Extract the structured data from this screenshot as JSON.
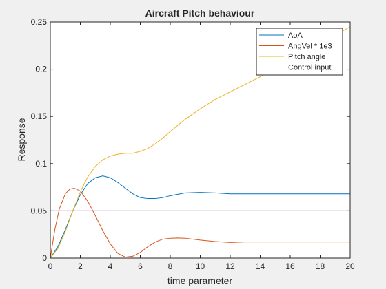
{
  "chart_data": {
    "type": "line",
    "title": "Aircraft Pitch behaviour",
    "xlabel": "time parameter",
    "ylabel": "Response",
    "xlim": [
      0,
      20
    ],
    "ylim": [
      0,
      0.25
    ],
    "xticks": [
      0,
      2,
      4,
      6,
      8,
      10,
      12,
      14,
      16,
      18,
      20
    ],
    "yticks": [
      0,
      0.05,
      0.1,
      0.15,
      0.2,
      0.25
    ],
    "xtick_labels": [
      "0",
      "2",
      "4",
      "6",
      "8",
      "10",
      "12",
      "14",
      "16",
      "18",
      "20"
    ],
    "ytick_labels": [
      "0",
      "0.05",
      "0.1",
      "0.15",
      "0.2",
      "0.25"
    ],
    "grid": false,
    "legend_position": "top-right",
    "series": [
      {
        "name": "AoA",
        "color": "#0072bd",
        "x": [
          0,
          0.5,
          1,
          1.5,
          2,
          2.5,
          3,
          3.5,
          4,
          4.5,
          5,
          5.5,
          6,
          6.5,
          7,
          7.5,
          8,
          9,
          10,
          11,
          12,
          14,
          16,
          18,
          20
        ],
        "y": [
          0,
          0.012,
          0.03,
          0.05,
          0.067,
          0.079,
          0.085,
          0.087,
          0.085,
          0.08,
          0.074,
          0.068,
          0.064,
          0.063,
          0.063,
          0.064,
          0.066,
          0.069,
          0.0695,
          0.069,
          0.068,
          0.068,
          0.068,
          0.068,
          0.068
        ]
      },
      {
        "name": "AngVel * 1e3",
        "color": "#d95319",
        "x": [
          0,
          0.3,
          0.6,
          1,
          1.3,
          1.6,
          2,
          2.5,
          3,
          3.5,
          4,
          4.5,
          5,
          5.5,
          6,
          6.5,
          7,
          7.5,
          8,
          8.5,
          9,
          10,
          11,
          12,
          13,
          14,
          16,
          18,
          20
        ],
        "y": [
          0,
          0.03,
          0.052,
          0.068,
          0.073,
          0.074,
          0.071,
          0.06,
          0.045,
          0.029,
          0.015,
          0.005,
          0.001,
          0.002,
          0.006,
          0.012,
          0.017,
          0.02,
          0.021,
          0.0212,
          0.021,
          0.019,
          0.0175,
          0.0165,
          0.017,
          0.017,
          0.017,
          0.017,
          0.017
        ]
      },
      {
        "name": "Pitch angle",
        "color": "#edb120",
        "x": [
          0,
          0.5,
          1,
          1.5,
          2,
          2.5,
          3,
          3.5,
          4,
          4.5,
          5,
          5.5,
          6,
          6.5,
          7,
          7.5,
          8,
          9,
          10,
          11,
          12,
          13,
          14,
          15,
          16,
          17,
          18,
          19,
          20
        ],
        "y": [
          0,
          0.01,
          0.028,
          0.05,
          0.07,
          0.086,
          0.097,
          0.104,
          0.108,
          0.11,
          0.111,
          0.111,
          0.113,
          0.116,
          0.121,
          0.127,
          0.134,
          0.147,
          0.158,
          0.168,
          0.176,
          0.184,
          0.192,
          0.201,
          0.209,
          0.218,
          0.227,
          0.236,
          0.245
        ]
      },
      {
        "name": "Control input",
        "color": "#7e2f8e",
        "x": [
          0,
          20
        ],
        "y": [
          0.05,
          0.05
        ]
      }
    ]
  }
}
